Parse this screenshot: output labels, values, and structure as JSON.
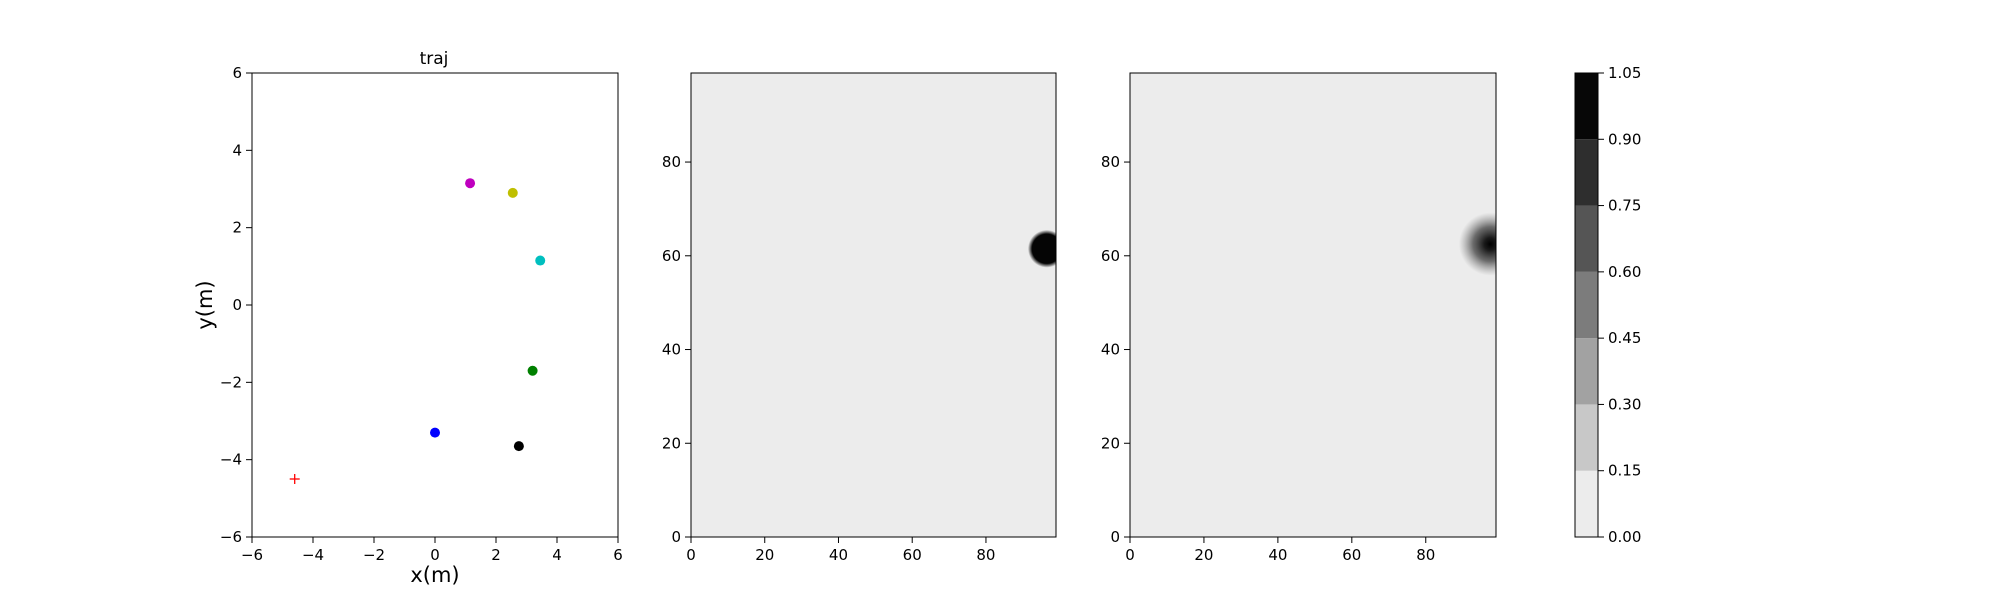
{
  "chart_data": [
    {
      "type": "scatter",
      "title": "traj",
      "xlabel": "x(m)",
      "ylabel": "y(m)",
      "xlim": [
        -6,
        6
      ],
      "ylim": [
        -6,
        6
      ],
      "xticks": [
        "−6",
        "−4",
        "−2",
        "0",
        "2",
        "4",
        "6"
      ],
      "yticks": [
        "−6",
        "−4",
        "−2",
        "0",
        "2",
        "4",
        "6"
      ],
      "grid": false,
      "points": [
        {
          "x": 1.15,
          "y": 3.15,
          "color": "#bf00bf",
          "marker": "circle"
        },
        {
          "x": 2.55,
          "y": 2.9,
          "color": "#bfbf00",
          "marker": "circle"
        },
        {
          "x": 3.45,
          "y": 1.15,
          "color": "#00bfbf",
          "marker": "circle"
        },
        {
          "x": 3.2,
          "y": -1.7,
          "color": "#008000",
          "marker": "circle"
        },
        {
          "x": 0.0,
          "y": -3.3,
          "color": "#0000ff",
          "marker": "circle"
        },
        {
          "x": 2.75,
          "y": -3.65,
          "color": "#000000",
          "marker": "circle"
        },
        {
          "x": -4.6,
          "y": -4.5,
          "color": "#ff0000",
          "marker": "plus"
        }
      ]
    },
    {
      "type": "heatmap",
      "xlim": [
        0,
        99
      ],
      "ylim": [
        0,
        99
      ],
      "xticks": [
        "0",
        "20",
        "40",
        "60",
        "80"
      ],
      "yticks": [
        "0",
        "20",
        "40",
        "60",
        "80"
      ],
      "background_value": 0.05,
      "blob": {
        "center_x": 96.5,
        "center_y": 61.5,
        "radius": 3.5,
        "peak_value": 1.0,
        "style": "sharp"
      }
    },
    {
      "type": "heatmap",
      "xlim": [
        0,
        99
      ],
      "ylim": [
        0,
        99
      ],
      "xticks": [
        "0",
        "20",
        "40",
        "60",
        "80"
      ],
      "yticks": [
        "0",
        "20",
        "40",
        "60",
        "80"
      ],
      "background_value": 0.05,
      "blob": {
        "center_x": 97.5,
        "center_y": 62.5,
        "radius": 5.0,
        "peak_value": 1.0,
        "style": "diffuse"
      }
    }
  ],
  "colorbar": {
    "levels": [
      0.0,
      0.15,
      0.3,
      0.45,
      0.6,
      0.75,
      0.9,
      1.05
    ],
    "tick_labels": [
      "0.00",
      "0.15",
      "0.30",
      "0.45",
      "0.60",
      "0.75",
      "0.90",
      "1.05"
    ],
    "band_colors": [
      "#ececec",
      "#c8c8c8",
      "#a2a2a2",
      "#7c7c7c",
      "#555555",
      "#2e2e2e",
      "#070707"
    ]
  }
}
